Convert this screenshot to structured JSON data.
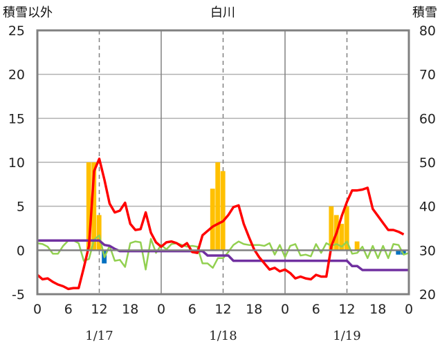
{
  "header": {
    "left_label": "積雪以外",
    "center_title": "白川",
    "right_label": "積雪"
  },
  "chart_data": {
    "type": "combo",
    "title": "白川",
    "y_left": {
      "label": "積雪以外",
      "min": -5,
      "max": 25,
      "ticks": [
        "-5",
        "0",
        "5",
        "10",
        "15",
        "20",
        "25"
      ]
    },
    "y_right": {
      "label": "積雪",
      "min": 20,
      "max": 80,
      "ticks": [
        "20",
        "30",
        "40",
        "50",
        "60",
        "70",
        "80"
      ]
    },
    "x": {
      "min": 0,
      "max": 72,
      "hour_ticks": [
        "0",
        "6",
        "12",
        "18",
        "0",
        "6",
        "12",
        "18",
        "0",
        "6",
        "12",
        "18",
        "0"
      ],
      "dates": [
        "1/17",
        "1/18",
        "1/19"
      ]
    },
    "grid": {
      "solid_x": [
        24,
        48
      ],
      "dashed_x": [
        12,
        36,
        60
      ],
      "zero_line": true
    },
    "bar_series": [
      {
        "name": "",
        "color": "#FFC000",
        "values": [
          [
            10,
            10
          ],
          [
            11,
            10
          ],
          [
            12,
            4
          ],
          [
            34,
            7
          ],
          [
            35,
            10
          ],
          [
            36,
            9
          ],
          [
            57,
            5
          ],
          [
            58,
            4
          ],
          [
            59,
            3
          ],
          [
            60,
            5
          ],
          [
            62,
            1
          ]
        ]
      },
      {
        "name": "",
        "color": "#0070C0",
        "values": [
          [
            13,
            -1.5
          ],
          [
            70,
            -0.5
          ],
          [
            71,
            -0.5
          ]
        ]
      }
    ],
    "line_series": [
      {
        "name": "",
        "color": "#FF0000",
        "values": [
          [
            0,
            -2.8
          ],
          [
            1,
            -3.3
          ],
          [
            2,
            -3.2
          ],
          [
            3,
            -3.6
          ],
          [
            4,
            -3.9
          ],
          [
            5,
            -4.1
          ],
          [
            6,
            -4.4
          ],
          [
            7,
            -4.3
          ],
          [
            8,
            -4.3
          ],
          [
            9,
            -2.0
          ],
          [
            10,
            0.5
          ],
          [
            11,
            9.0
          ],
          [
            12,
            10.4
          ],
          [
            13,
            8.0
          ],
          [
            14,
            5.3
          ],
          [
            15,
            4.3
          ],
          [
            16,
            4.5
          ],
          [
            17,
            5.4
          ],
          [
            18,
            3.0
          ],
          [
            19,
            2.3
          ],
          [
            20,
            2.4
          ],
          [
            21,
            4.3
          ],
          [
            22,
            2.0
          ],
          [
            23,
            0.9
          ],
          [
            24,
            0.4
          ],
          [
            25,
            0.9
          ],
          [
            26,
            1.0
          ],
          [
            27,
            0.8
          ],
          [
            28,
            0.4
          ],
          [
            29,
            0.8
          ],
          [
            30,
            -0.2
          ],
          [
            31,
            -0.3
          ],
          [
            32,
            1.7
          ],
          [
            33,
            2.2
          ],
          [
            34,
            2.7
          ],
          [
            35,
            3.0
          ],
          [
            36,
            3.3
          ],
          [
            37,
            4.0
          ],
          [
            38,
            4.9
          ],
          [
            39,
            5.1
          ],
          [
            40,
            3.0
          ],
          [
            41,
            1.5
          ],
          [
            42,
            0.1
          ],
          [
            43,
            -0.8
          ],
          [
            44,
            -1.5
          ],
          [
            45,
            -2.2
          ],
          [
            46,
            -2.0
          ],
          [
            47,
            -2.4
          ],
          [
            48,
            -2.2
          ],
          [
            49,
            -2.6
          ],
          [
            50,
            -3.2
          ],
          [
            51,
            -3.0
          ],
          [
            52,
            -3.2
          ],
          [
            53,
            -3.3
          ],
          [
            54,
            -2.8
          ],
          [
            55,
            -3.0
          ],
          [
            56,
            -3.0
          ],
          [
            57,
            0.5
          ],
          [
            58,
            2.0
          ],
          [
            59,
            3.9
          ],
          [
            60,
            5.5
          ],
          [
            61,
            6.8
          ],
          [
            62,
            6.8
          ],
          [
            63,
            6.9
          ],
          [
            64,
            7.1
          ],
          [
            65,
            4.7
          ],
          [
            66,
            3.9
          ],
          [
            67,
            3.1
          ],
          [
            68,
            2.3
          ],
          [
            69,
            2.3
          ],
          [
            70,
            2.1
          ],
          [
            71,
            1.8
          ]
        ]
      },
      {
        "name": "",
        "color": "#92D050",
        "values": [
          [
            0,
            0.8
          ],
          [
            1,
            0.7
          ],
          [
            2,
            0.4
          ],
          [
            3,
            -0.4
          ],
          [
            4,
            -0.4
          ],
          [
            5,
            0.5
          ],
          [
            6,
            1.1
          ],
          [
            7,
            1.1
          ],
          [
            8,
            0.8
          ],
          [
            9,
            -1.2
          ],
          [
            10,
            -1.0
          ],
          [
            11,
            1.2
          ],
          [
            12,
            1.7
          ],
          [
            13,
            -0.8
          ],
          [
            14,
            0.5
          ],
          [
            15,
            -1.2
          ],
          [
            16,
            -1.1
          ],
          [
            17,
            -1.9
          ],
          [
            18,
            0.8
          ],
          [
            19,
            1.0
          ],
          [
            20,
            0.9
          ],
          [
            21,
            -2.2
          ],
          [
            22,
            1.3
          ],
          [
            23,
            -0.3
          ],
          [
            24,
            0.6
          ],
          [
            25,
            0.1
          ],
          [
            26,
            0.7
          ],
          [
            27,
            0.8
          ],
          [
            28,
            0.6
          ],
          [
            29,
            0.4
          ],
          [
            30,
            0.5
          ],
          [
            31,
            0.4
          ],
          [
            32,
            -1.5
          ],
          [
            33,
            -1.5
          ],
          [
            34,
            -2.0
          ],
          [
            35,
            -0.9
          ],
          [
            36,
            -0.9
          ],
          [
            37,
            -0.2
          ],
          [
            38,
            0.6
          ],
          [
            39,
            1.0
          ],
          [
            40,
            0.7
          ],
          [
            41,
            0.6
          ],
          [
            42,
            0.6
          ],
          [
            43,
            0.6
          ],
          [
            44,
            0.5
          ],
          [
            45,
            0.8
          ],
          [
            46,
            -0.5
          ],
          [
            47,
            0.6
          ],
          [
            48,
            -0.8
          ],
          [
            49,
            0.5
          ],
          [
            50,
            0.7
          ],
          [
            51,
            -0.6
          ],
          [
            52,
            -0.5
          ],
          [
            53,
            -0.7
          ],
          [
            54,
            0.7
          ],
          [
            55,
            -0.3
          ],
          [
            56,
            0.8
          ],
          [
            57,
            0.5
          ],
          [
            58,
            0.7
          ],
          [
            59,
            0.4
          ],
          [
            60,
            1.0
          ],
          [
            61,
            -0.4
          ],
          [
            62,
            -0.3
          ],
          [
            63,
            0.4
          ],
          [
            64,
            -0.9
          ],
          [
            65,
            0.5
          ],
          [
            66,
            -0.9
          ],
          [
            67,
            0.5
          ],
          [
            68,
            -0.9
          ],
          [
            69,
            0.7
          ],
          [
            70,
            0.6
          ],
          [
            71,
            -0.5
          ],
          [
            72,
            -0.3
          ]
        ]
      },
      {
        "name": "",
        "color": "#7030A0",
        "axis": "right",
        "values": [
          [
            0,
            32.2
          ],
          [
            12,
            32.2
          ],
          [
            13,
            31.2
          ],
          [
            14,
            31.0
          ],
          [
            15,
            30.3
          ],
          [
            16,
            29.8
          ],
          [
            24,
            29.8
          ],
          [
            32,
            29.8
          ],
          [
            33,
            28.8
          ],
          [
            37,
            28.8
          ],
          [
            38,
            27.6
          ],
          [
            56,
            27.6
          ],
          [
            60,
            27.6
          ],
          [
            61,
            26.4
          ],
          [
            62,
            26.4
          ],
          [
            63,
            25.5
          ],
          [
            72,
            25.5
          ]
        ]
      }
    ]
  }
}
